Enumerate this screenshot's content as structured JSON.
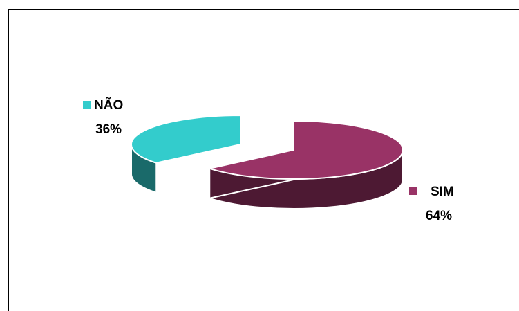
{
  "chart_data": {
    "type": "pie",
    "style": "3d-exploded",
    "title": "",
    "categories": [
      "NÃO",
      "SIM"
    ],
    "values": [
      36,
      64
    ],
    "labels": [
      "36%",
      "64%"
    ],
    "colors": {
      "NÃO": {
        "top": "#33CCCC",
        "side": "#1A6A6A"
      },
      "SIM": {
        "top": "#993366",
        "side": "#4D1933"
      }
    },
    "legend": "inline-labels"
  }
}
